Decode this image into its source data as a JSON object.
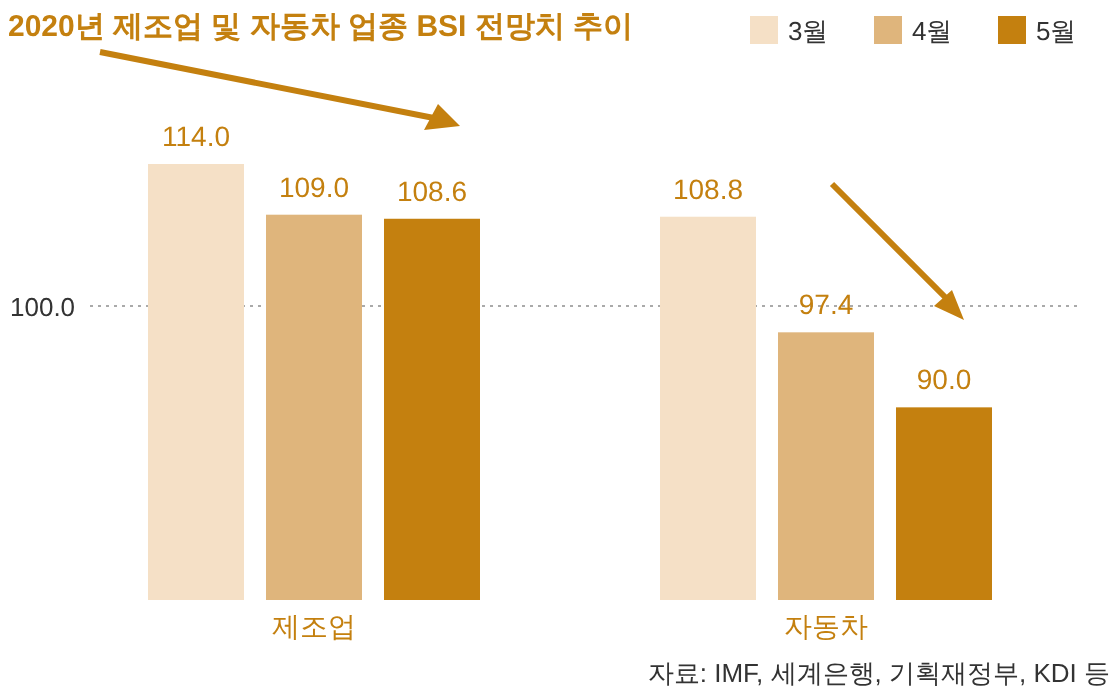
{
  "chart_data": {
    "type": "bar",
    "title": "2020년 제조업 및 자동차 업종 BSI 전망치 추이",
    "categories": [
      "제조업",
      "자동차"
    ],
    "series": [
      {
        "name": "3월",
        "color": "#f5e0c6",
        "values": [
          114.0,
          108.8
        ],
        "value_labels": [
          "114.0",
          "108.8"
        ]
      },
      {
        "name": "4월",
        "color": "#dfb57c",
        "values": [
          109.0,
          97.4
        ],
        "value_labels": [
          "109.0",
          "97.4"
        ]
      },
      {
        "name": "5월",
        "color": "#c4800f",
        "values": [
          108.6,
          90.0
        ],
        "value_labels": [
          "108.6",
          "90.0"
        ]
      }
    ],
    "ylim": [
      71,
      114
    ],
    "legend": "top right",
    "ref_lines": [
      {
        "axis": "y",
        "value": 100,
        "label": "100.0",
        "color": "#aaaaaa",
        "line_style": "dotted"
      }
    ],
    "annotations": [
      "자료: IMF, 세계은행, 기획재정부, KDI 등"
    ]
  }
}
